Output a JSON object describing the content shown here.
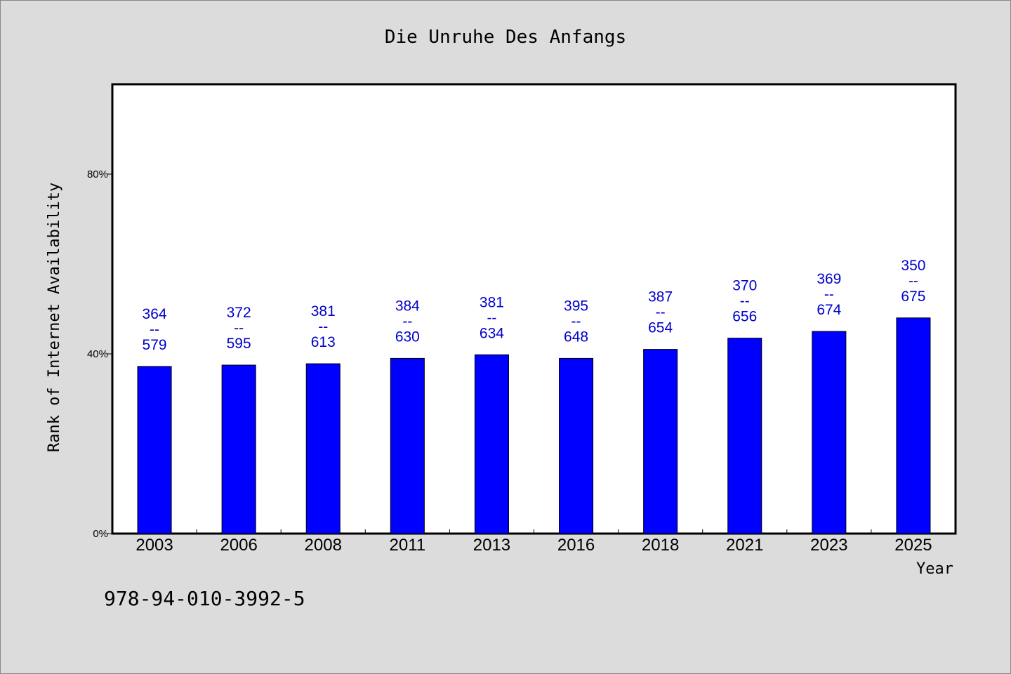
{
  "chart_data": {
    "type": "bar",
    "title": "Die Unruhe Des Anfangs",
    "xlabel": "Year",
    "ylabel": "Rank of Internet Availability",
    "categories": [
      "2003",
      "2006",
      "2008",
      "2011",
      "2013",
      "2016",
      "2018",
      "2021",
      "2023",
      "2025"
    ],
    "values": [
      37.2,
      37.5,
      37.8,
      39.0,
      39.8,
      39.0,
      41.0,
      43.5,
      45.0,
      48.0
    ],
    "value_unit": "%",
    "data_labels": [
      {
        "top": "364",
        "sep": "--",
        "bottom": "579"
      },
      {
        "top": "372",
        "sep": "--",
        "bottom": "595"
      },
      {
        "top": "381",
        "sep": "--",
        "bottom": "613"
      },
      {
        "top": "384",
        "sep": "--",
        "bottom": "630"
      },
      {
        "top": "381",
        "sep": "--",
        "bottom": "634"
      },
      {
        "top": "395",
        "sep": "--",
        "bottom": "648"
      },
      {
        "top": "387",
        "sep": "--",
        "bottom": "654"
      },
      {
        "top": "370",
        "sep": "--",
        "bottom": "656"
      },
      {
        "top": "369",
        "sep": "--",
        "bottom": "674"
      },
      {
        "top": "350",
        "sep": "--",
        "bottom": "675"
      }
    ],
    "ylim": [
      0,
      100
    ],
    "yticks": [
      {
        "value": 0,
        "label": "0%"
      },
      {
        "value": 40,
        "label": "40%"
      },
      {
        "value": 80,
        "label": "80%"
      }
    ],
    "grid": false,
    "legend": "none",
    "colors": {
      "bar": "#0000ff",
      "data_label": "#0000cc",
      "background": "#dcdcdc",
      "plot_background": "#ffffff"
    }
  },
  "footer": {
    "isbn": "978-94-010-3992-5"
  }
}
